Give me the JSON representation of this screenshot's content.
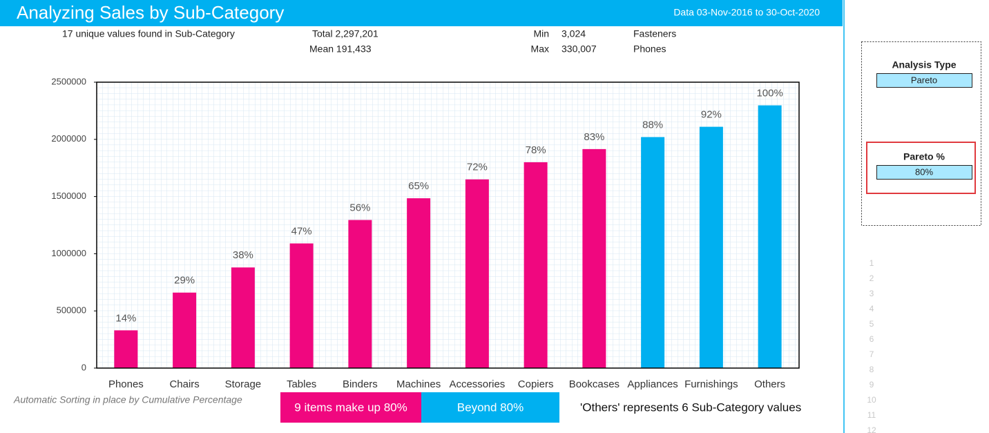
{
  "header": {
    "title": "Analyzing Sales by Sub-Category",
    "date_range": "Data 03-Nov-2016 to 30-Oct-2020"
  },
  "stats": {
    "unique": "17 unique values found in Sub-Category",
    "total": "Total 2,297,201",
    "mean": "Mean 191,433",
    "min_label": "Min",
    "min_value": "3,024",
    "min_item": "Fasteners",
    "max_label": "Max",
    "max_value": "330,007",
    "max_item": "Phones"
  },
  "chart_data": {
    "type": "bar",
    "categories": [
      "Phones",
      "Chairs",
      "Storage",
      "Tables",
      "Binders",
      "Machines",
      "Accessories",
      "Copiers",
      "Bookcases",
      "Appliances",
      "Furnishings",
      "Others"
    ],
    "values": [
      330007,
      660000,
      880000,
      1090000,
      1295000,
      1485000,
      1650000,
      1800000,
      1915000,
      2020000,
      2110000,
      2297201
    ],
    "cumulative_percent_labels": [
      "14%",
      "29%",
      "38%",
      "47%",
      "56%",
      "65%",
      "72%",
      "78%",
      "83%",
      "88%",
      "92%",
      "100%"
    ],
    "colors": [
      "#f0077f",
      "#f0077f",
      "#f0077f",
      "#f0077f",
      "#f0077f",
      "#f0077f",
      "#f0077f",
      "#f0077f",
      "#f0077f",
      "#00b0f0",
      "#00b0f0",
      "#00b0f0"
    ],
    "ylim": [
      0,
      2500000
    ],
    "yticks": [
      0,
      500000,
      1000000,
      1500000,
      2000000,
      2500000
    ],
    "grid": true
  },
  "footer": {
    "note": "Automatic Sorting in place by Cumulative Percentage",
    "legend": [
      {
        "label": "9 items make up 80%",
        "color": "#f0077f"
      },
      {
        "label": "Beyond 80%",
        "color": "#00b0f0"
      }
    ],
    "others_note": "'Others' represents 6 Sub-Category values"
  },
  "panel": {
    "analysis_type_label": "Analysis Type",
    "analysis_type_value": "Pareto",
    "pareto_label": "Pareto %",
    "pareto_value": "80%"
  },
  "row_numbers": [
    1,
    2,
    3,
    4,
    5,
    6,
    7,
    8,
    9,
    10,
    11,
    12
  ]
}
